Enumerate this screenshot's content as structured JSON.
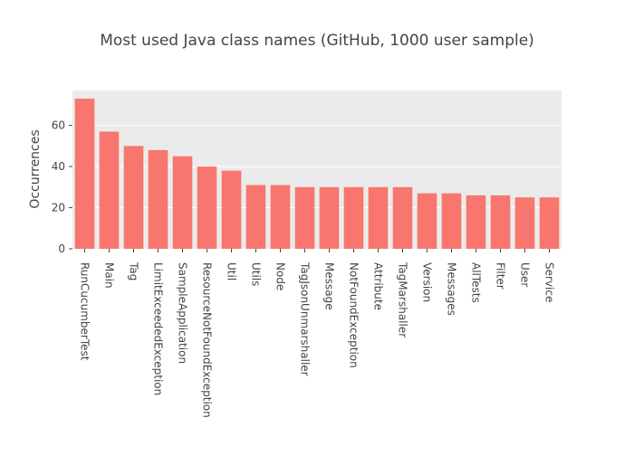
{
  "chart_data": {
    "type": "bar",
    "title": "Most used Java class names (GitHub, 1000 user sample)",
    "xlabel": "",
    "ylabel": "Occurrences",
    "categories": [
      "RunCucumberTest",
      "Main",
      "Tag",
      "LimitExceededException",
      "SampleApplication",
      "ResourceNotFoundException",
      "Util",
      "Utils",
      "Node",
      "TagJsonUnmarshaller",
      "Message",
      "NotFoundException",
      "Attribute",
      "TagMarshaller",
      "Version",
      "Messages",
      "AllTests",
      "Filter",
      "User",
      "Service"
    ],
    "values": [
      73,
      57,
      50,
      48,
      45,
      40,
      38,
      31,
      31,
      30,
      30,
      30,
      30,
      30,
      27,
      27,
      26,
      26,
      25,
      25
    ],
    "ylim": [
      0,
      77
    ],
    "yticks": [
      0,
      20,
      40,
      60
    ],
    "grid": true,
    "bar_color": "#F8766D",
    "plot_background": "#EBEBEB",
    "grid_color": "#FFFFFF"
  }
}
